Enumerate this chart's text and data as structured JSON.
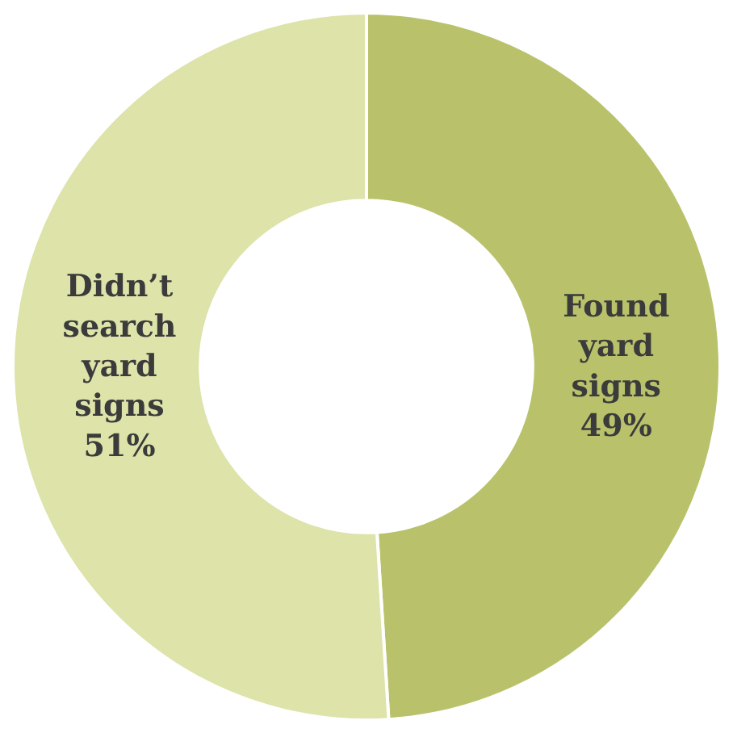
{
  "chart_data": {
    "type": "donut",
    "categories": [
      "Found yard signs",
      "Didn’t search yard signs"
    ],
    "values": [
      49,
      51
    ],
    "value_labels": [
      "49%",
      "51%"
    ],
    "colors": [
      "#b9c26b",
      "#dde3a9"
    ],
    "legend": false
  }
}
